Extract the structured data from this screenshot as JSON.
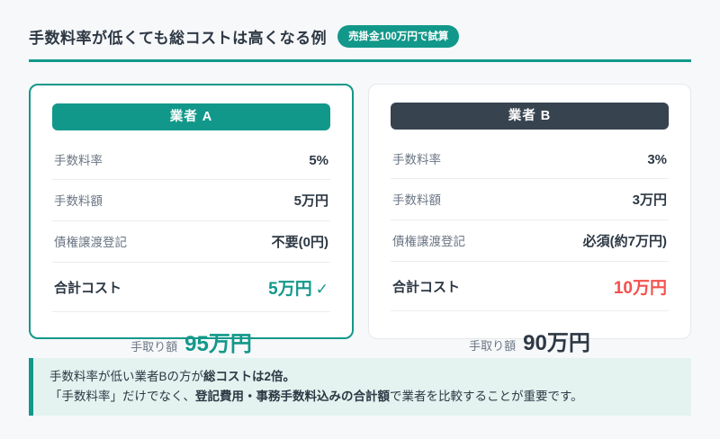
{
  "colors": {
    "accent_teal": "#12988A",
    "dark_slate": "#37434F",
    "alert_red": "#F4514D",
    "note_bg": "#E4F3F0",
    "page_bg": "#F7F8FA"
  },
  "header": {
    "title": "手数料率が低くても総コストは高くなる例",
    "badge": "売掛金100万円で試算"
  },
  "cards": [
    {
      "name": "業者 A",
      "rows": [
        {
          "label": "手数料率",
          "value": "5%"
        },
        {
          "label": "手数料額",
          "value": "5万円"
        },
        {
          "label": "債権譲渡登記",
          "value": "不要(0円)"
        }
      ],
      "total": {
        "label": "合計コスト",
        "value": "5万円",
        "check": "✓"
      },
      "net": {
        "label": "手取り額",
        "value": "95万円"
      }
    },
    {
      "name": "業者 B",
      "rows": [
        {
          "label": "手数料率",
          "value": "3%"
        },
        {
          "label": "手数料額",
          "value": "3万円"
        },
        {
          "label": "債権譲渡登記",
          "value": "必須(約7万円)"
        }
      ],
      "total": {
        "label": "合計コスト",
        "value": "10万円"
      },
      "net": {
        "label": "手取り額",
        "value": "90万円"
      }
    }
  ],
  "note": {
    "line1_pre": "手数料率が低い業者Bの方が",
    "line1_bold": "総コストは2倍。",
    "line2_pre": "「手数料率」だけでなく、",
    "line2_bold": "登記費用・事務手数料込みの合計額",
    "line2_post": "で業者を比較することが重要です。"
  }
}
